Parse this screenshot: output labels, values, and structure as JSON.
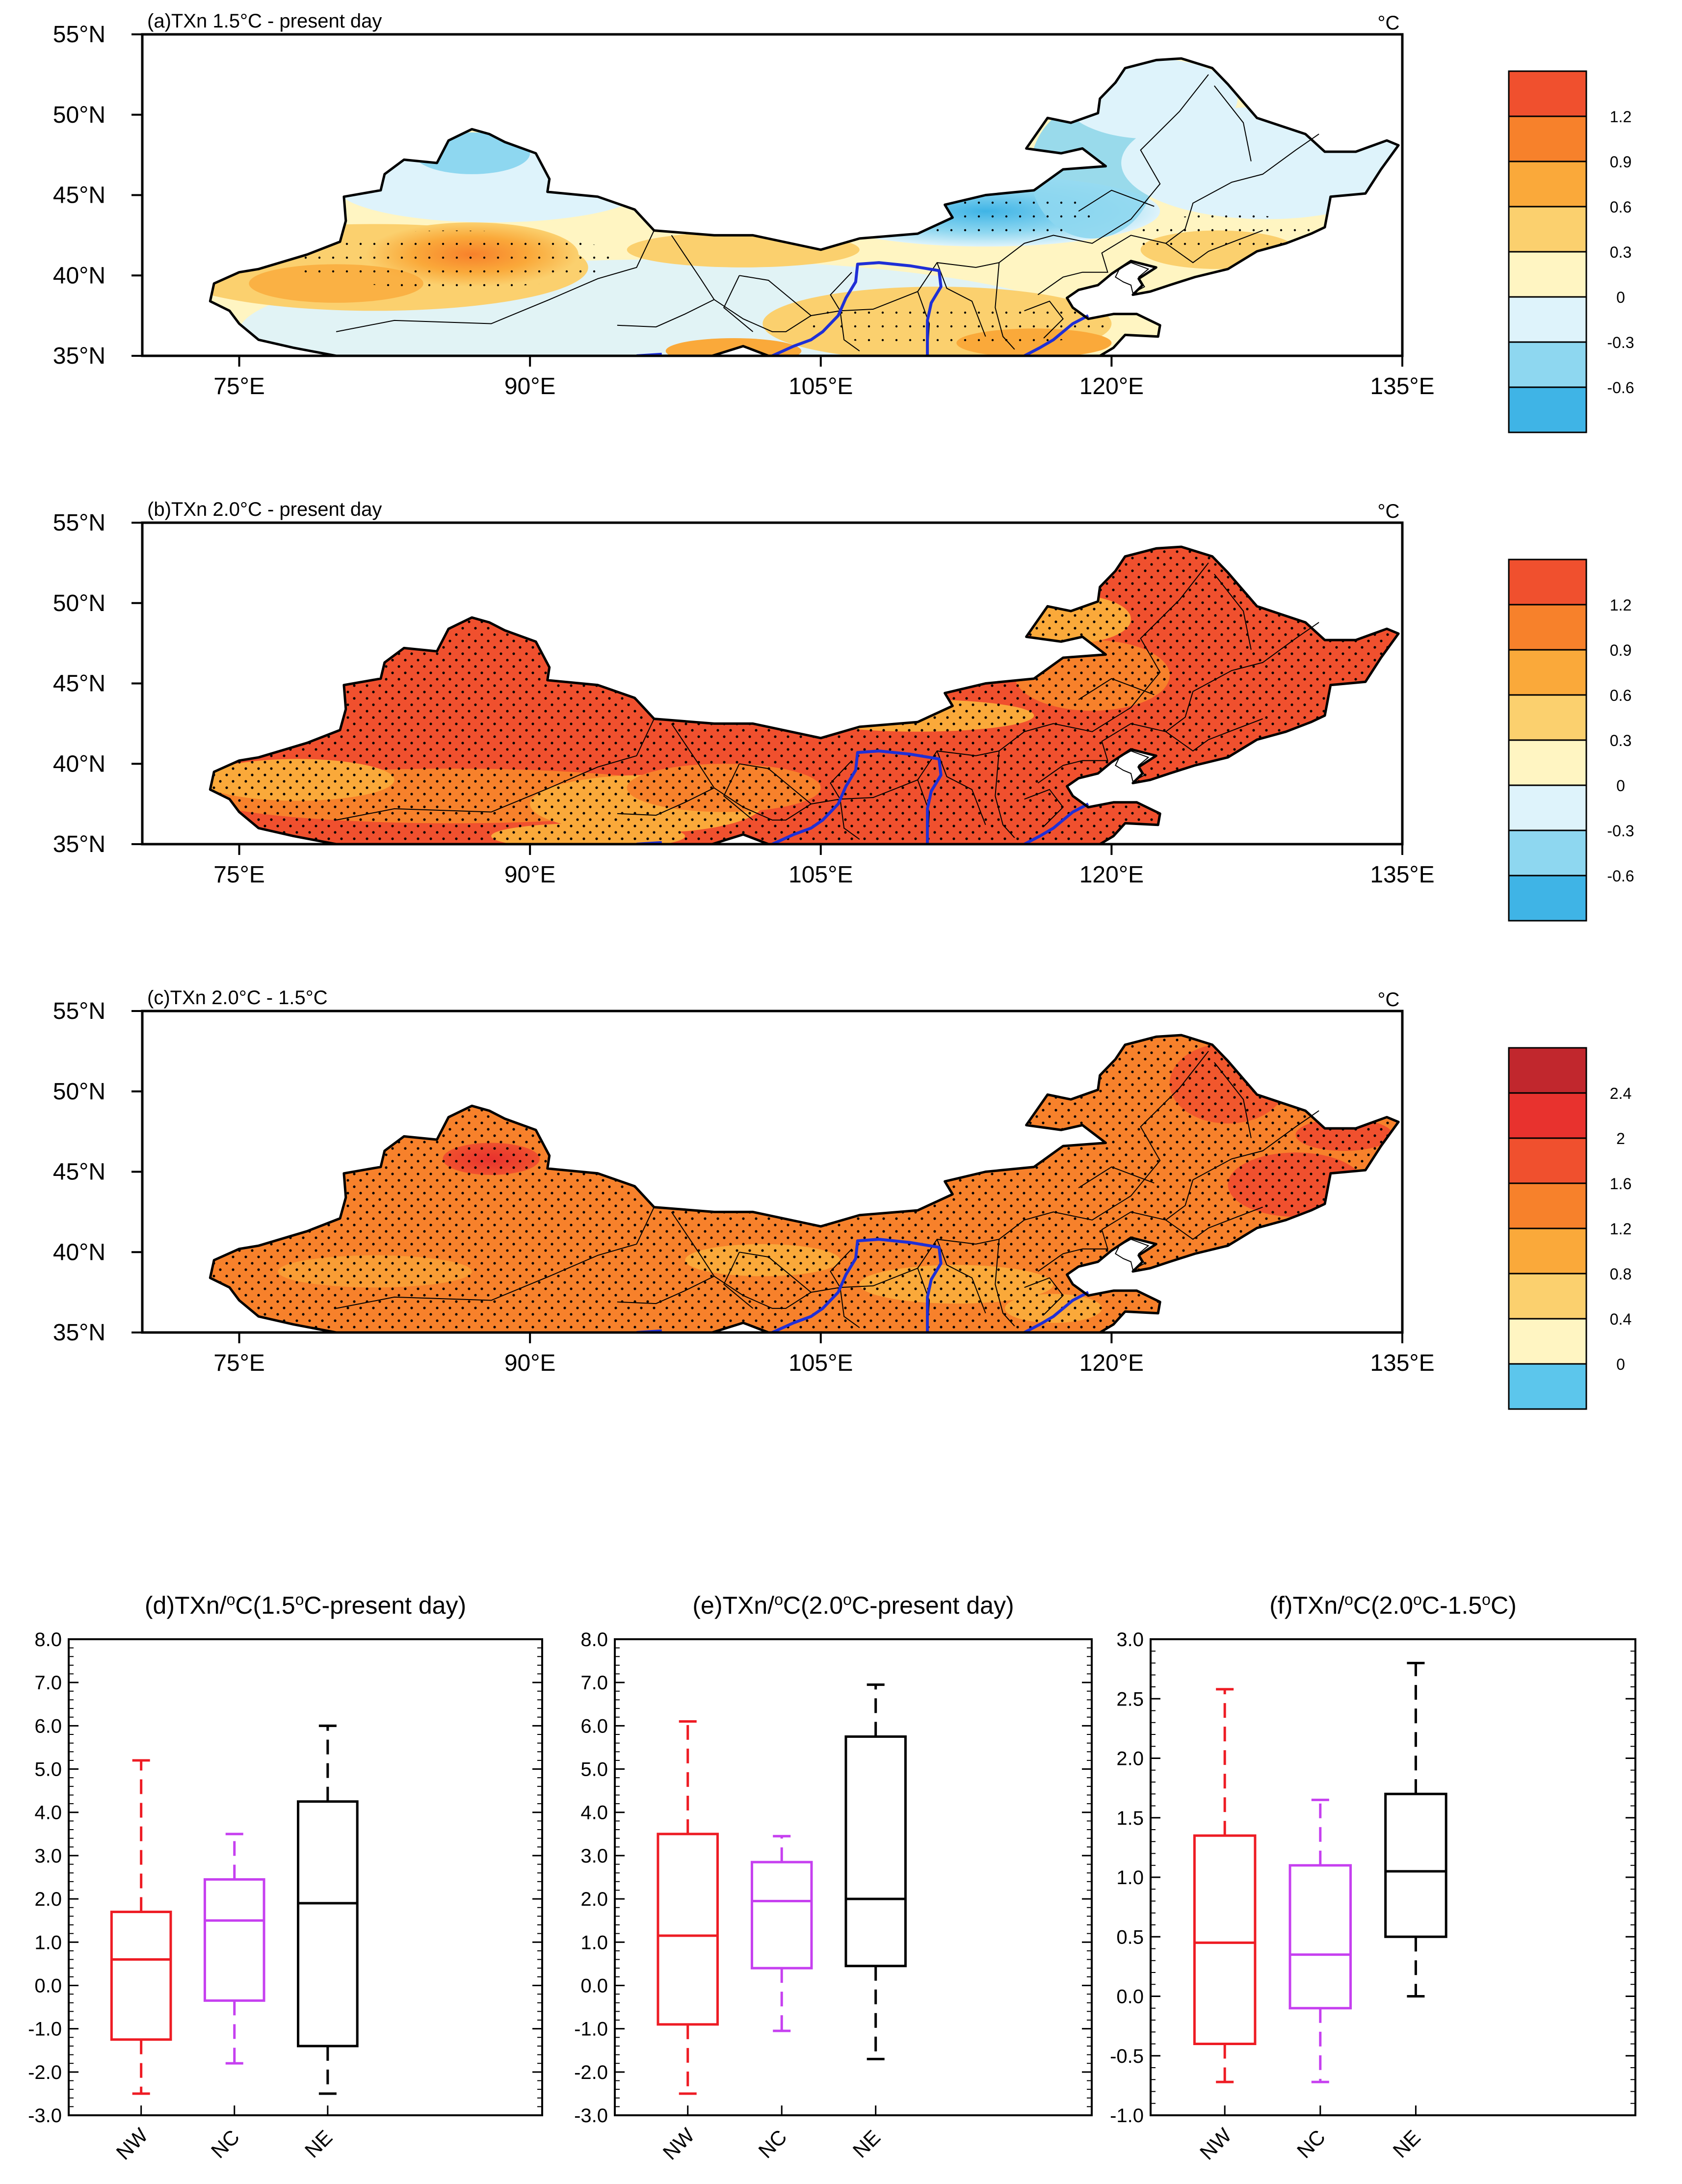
{
  "degree_unit": "°C",
  "chart_data": [
    {
      "type": "heatmap",
      "panel": "a",
      "title": "(a)TXn 1.5°C - present day",
      "unit": "°C",
      "xaxis": {
        "min": 70,
        "max": 135,
        "ticks": [
          75,
          90,
          105,
          120,
          135
        ],
        "tick_labels": [
          "75°E",
          "90°E",
          "105°E",
          "120°E",
          "135°E"
        ]
      },
      "yaxis": {
        "min": 35,
        "max": 55,
        "ticks": [
          35,
          40,
          45,
          50,
          55
        ],
        "tick_labels": [
          "35°N",
          "40°N",
          "45°N",
          "50°N",
          "55°N"
        ]
      },
      "colorbar": {
        "labels": [
          "1.2",
          "0.9",
          "0.6",
          "0.3",
          "0",
          "-0.3",
          "-0.6"
        ],
        "colors": [
          "#f0502e",
          "#f7812b",
          "#faa93a",
          "#fbd06e",
          "#fff5c2",
          "#def3fb",
          "#8ed7f0",
          "#3fb4e6"
        ]
      }
    },
    {
      "type": "heatmap",
      "panel": "b",
      "title": "(b)TXn 2.0°C - present day",
      "unit": "°C",
      "xaxis": {
        "min": 70,
        "max": 135,
        "ticks": [
          75,
          90,
          105,
          120,
          135
        ],
        "tick_labels": [
          "75°E",
          "90°E",
          "105°E",
          "120°E",
          "135°E"
        ]
      },
      "yaxis": {
        "min": 35,
        "max": 55,
        "ticks": [
          35,
          40,
          45,
          50,
          55
        ],
        "tick_labels": [
          "35°N",
          "40°N",
          "45°N",
          "50°N",
          "55°N"
        ]
      },
      "colorbar": {
        "labels": [
          "1.2",
          "0.9",
          "0.6",
          "0.3",
          "0",
          "-0.3",
          "-0.6"
        ],
        "colors": [
          "#f0502e",
          "#f7812b",
          "#faa93a",
          "#fbd06e",
          "#fff5c2",
          "#def3fb",
          "#8ed7f0",
          "#3fb4e6"
        ]
      }
    },
    {
      "type": "heatmap",
      "panel": "c",
      "title": "(c)TXn 2.0°C - 1.5°C",
      "unit": "°C",
      "xaxis": {
        "min": 70,
        "max": 135,
        "ticks": [
          75,
          90,
          105,
          120,
          135
        ],
        "tick_labels": [
          "75°E",
          "90°E",
          "105°E",
          "120°E",
          "135°E"
        ]
      },
      "yaxis": {
        "min": 35,
        "max": 55,
        "ticks": [
          35,
          40,
          45,
          50,
          55
        ],
        "tick_labels": [
          "35°N",
          "40°N",
          "45°N",
          "50°N",
          "55°N"
        ]
      },
      "colorbar": {
        "labels": [
          "2.4",
          "2",
          "1.6",
          "1.2",
          "0.8",
          "0.4",
          "0"
        ],
        "colors": [
          "#c1272d",
          "#e8322e",
          "#f0502e",
          "#f7812b",
          "#faa93a",
          "#fbd06e",
          "#fff5c2",
          "#5cc6ec"
        ]
      }
    },
    {
      "type": "box",
      "panel": "d",
      "title_parts": [
        "(d)TXn/",
        "o",
        "C(1.5",
        "o",
        "C-present day)"
      ],
      "categories": [
        "NW",
        "NC",
        "NE"
      ],
      "colors": [
        "#ee1c24",
        "#c640f0",
        "#000000"
      ],
      "ylim": [
        -3.0,
        8.0
      ],
      "yticks": [
        -3.0,
        -2.0,
        -1.0,
        0.0,
        1.0,
        2.0,
        3.0,
        4.0,
        5.0,
        6.0,
        7.0,
        8.0
      ],
      "ytick_labels": [
        "-3.0",
        "-2.0",
        "-1.0",
        "0.0",
        "1.0",
        "2.0",
        "3.0",
        "4.0",
        "5.0",
        "6.0",
        "7.0",
        "8.0"
      ],
      "boxes": [
        {
          "min": -2.5,
          "q1": -1.25,
          "median": 0.6,
          "q3": 1.7,
          "max": 5.2
        },
        {
          "min": -1.8,
          "q1": -0.35,
          "median": 1.5,
          "q3": 2.45,
          "max": 3.5
        },
        {
          "min": -2.5,
          "q1": -1.4,
          "median": 1.9,
          "q3": 4.25,
          "max": 6.0
        }
      ]
    },
    {
      "type": "box",
      "panel": "e",
      "title_parts": [
        "(e)TXn/",
        "o",
        "C(2.0",
        "o",
        "C-present day)"
      ],
      "categories": [
        "NW",
        "NC",
        "NE"
      ],
      "colors": [
        "#ee1c24",
        "#c640f0",
        "#000000"
      ],
      "ylim": [
        -3.0,
        8.0
      ],
      "yticks": [
        -3.0,
        -2.0,
        -1.0,
        0.0,
        1.0,
        2.0,
        3.0,
        4.0,
        5.0,
        6.0,
        7.0,
        8.0
      ],
      "ytick_labels": [
        "-3.0",
        "-2.0",
        "-1.0",
        "0.0",
        "1.0",
        "2.0",
        "3.0",
        "4.0",
        "5.0",
        "6.0",
        "7.0",
        "8.0"
      ],
      "boxes": [
        {
          "min": -2.5,
          "q1": -0.9,
          "median": 1.15,
          "q3": 3.5,
          "max": 6.1
        },
        {
          "min": -1.05,
          "q1": 0.4,
          "median": 1.95,
          "q3": 2.85,
          "max": 3.45
        },
        {
          "min": -1.7,
          "q1": 0.45,
          "median": 2.0,
          "q3": 5.75,
          "max": 6.95
        }
      ]
    },
    {
      "type": "box",
      "panel": "f",
      "title_parts": [
        "(f)TXn/",
        "o",
        "C(2.0",
        "o",
        "C-1.5",
        "o",
        "C)"
      ],
      "categories": [
        "NW",
        "NC",
        "NE"
      ],
      "colors": [
        "#ee1c24",
        "#c640f0",
        "#000000"
      ],
      "ylim": [
        -1.0,
        3.0
      ],
      "yticks": [
        -1.0,
        -0.5,
        0.0,
        0.5,
        1.0,
        1.5,
        2.0,
        2.5,
        3.0
      ],
      "ytick_labels": [
        "-1.0",
        "-0.5",
        "0.0",
        "0.5",
        "1.0",
        "1.5",
        "2.0",
        "2.5",
        "3.0"
      ],
      "boxes": [
        {
          "min": -0.72,
          "q1": -0.4,
          "median": 0.45,
          "q3": 1.35,
          "max": 2.58
        },
        {
          "min": -0.72,
          "q1": -0.1,
          "median": 0.35,
          "q3": 1.1,
          "max": 1.65
        },
        {
          "min": 0.0,
          "q1": 0.5,
          "median": 1.05,
          "q3": 1.7,
          "max": 2.8
        }
      ]
    }
  ]
}
